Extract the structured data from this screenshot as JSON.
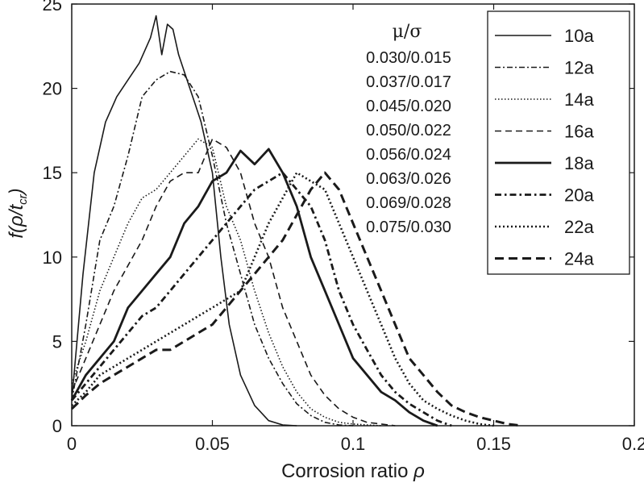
{
  "chart_data": {
    "type": "line",
    "xlabel": "Corrosion ratio",
    "xlabel_symbol": "ρ",
    "ylabel": "f(ρ/t",
    "ylabel_sub": "cr",
    "ylabel_close": ")",
    "xlim": [
      0,
      0.2
    ],
    "ylim": [
      0,
      25
    ],
    "x_ticks": [
      "0",
      "0.05",
      "0.1",
      "0.15",
      "0.2"
    ],
    "x_tick_values": [
      0,
      0.05,
      0.1,
      0.15,
      0.2
    ],
    "y_ticks": [
      "0",
      "5",
      "10",
      "15",
      "20",
      "25"
    ],
    "y_tick_values": [
      0,
      5,
      10,
      15,
      20,
      25
    ],
    "grid": false,
    "legend_position": "top-right",
    "annotation_title": "μ/σ",
    "annotation_lines": [
      "0.030/0.015",
      "0.037/0.017",
      "0.045/0.020",
      "0.050/0.022",
      "0.056/0.024",
      "0.063/0.026",
      "0.069/0.028",
      "0.075/0.030"
    ],
    "series": [
      {
        "name": "10a",
        "style": "solid-thin",
        "x": [
          0,
          0.004,
          0.008,
          0.012,
          0.016,
          0.02,
          0.024,
          0.028,
          0.03,
          0.032,
          0.034,
          0.036,
          0.038,
          0.04,
          0.042,
          0.044,
          0.046,
          0.048,
          0.05,
          0.053,
          0.056,
          0.06,
          0.065,
          0.07,
          0.075,
          0.08
        ],
        "y": [
          1.5,
          9,
          15,
          18,
          19.5,
          20.5,
          21.5,
          23,
          24.3,
          22,
          23.8,
          23.5,
          22,
          21,
          20,
          19,
          18,
          16.5,
          15,
          10,
          6,
          3,
          1.2,
          0.3,
          0.05,
          0
        ]
      },
      {
        "name": "12a",
        "style": "dash-dot-thin",
        "x": [
          0,
          0.005,
          0.01,
          0.015,
          0.02,
          0.025,
          0.03,
          0.035,
          0.04,
          0.045,
          0.05,
          0.055,
          0.06,
          0.065,
          0.07,
          0.075,
          0.08,
          0.085,
          0.09,
          0.095,
          0.1
        ],
        "y": [
          1.5,
          6,
          11,
          13,
          16,
          19.5,
          20.5,
          21,
          20.8,
          19.5,
          16,
          12,
          9,
          6,
          4,
          2.5,
          1.3,
          0.6,
          0.2,
          0.05,
          0
        ]
      },
      {
        "name": "14a",
        "style": "dotted-thin",
        "x": [
          0,
          0.005,
          0.01,
          0.015,
          0.02,
          0.025,
          0.03,
          0.035,
          0.04,
          0.045,
          0.05,
          0.055,
          0.06,
          0.065,
          0.07,
          0.075,
          0.08,
          0.085,
          0.09,
          0.095,
          0.1,
          0.105,
          0.11
        ],
        "y": [
          2.5,
          5,
          8,
          10,
          12,
          13.5,
          14,
          15,
          16,
          17,
          16.5,
          13,
          11,
          8,
          5.5,
          3.5,
          2,
          1,
          0.5,
          0.2,
          0.1,
          0.05,
          0
        ]
      },
      {
        "name": "16a",
        "style": "dashed-thin",
        "x": [
          0,
          0.005,
          0.01,
          0.015,
          0.02,
          0.025,
          0.03,
          0.035,
          0.04,
          0.045,
          0.05,
          0.055,
          0.06,
          0.065,
          0.07,
          0.075,
          0.08,
          0.085,
          0.09,
          0.095,
          0.1,
          0.105,
          0.11,
          0.115
        ],
        "y": [
          2,
          4,
          6,
          8,
          9.5,
          11,
          13,
          14.5,
          15,
          15,
          17,
          16.5,
          15,
          12,
          10,
          7,
          5,
          3,
          1.8,
          1,
          0.5,
          0.2,
          0.1,
          0
        ]
      },
      {
        "name": "18a",
        "style": "solid-thick",
        "x": [
          0,
          0.005,
          0.01,
          0.015,
          0.02,
          0.025,
          0.03,
          0.035,
          0.04,
          0.045,
          0.05,
          0.055,
          0.06,
          0.065,
          0.07,
          0.075,
          0.08,
          0.085,
          0.09,
          0.095,
          0.1,
          0.105,
          0.11,
          0.115,
          0.12,
          0.125,
          0.13
        ],
        "y": [
          1.5,
          3,
          4,
          5,
          7,
          8,
          9,
          10,
          12,
          13,
          14.5,
          15,
          16.3,
          15.5,
          16.4,
          15,
          13,
          10,
          8,
          6,
          4,
          3,
          2,
          1.5,
          0.8,
          0.3,
          0
        ]
      },
      {
        "name": "20a",
        "style": "dash-dot-thick",
        "x": [
          0,
          0.005,
          0.01,
          0.015,
          0.02,
          0.025,
          0.03,
          0.035,
          0.04,
          0.045,
          0.05,
          0.055,
          0.06,
          0.065,
          0.07,
          0.075,
          0.08,
          0.085,
          0.09,
          0.095,
          0.1,
          0.105,
          0.11,
          0.115,
          0.12,
          0.125,
          0.13,
          0.135
        ],
        "y": [
          1.5,
          2.5,
          3.5,
          4.5,
          5.5,
          6.5,
          7,
          8,
          9,
          10,
          11,
          12,
          13,
          14,
          14.5,
          15,
          14,
          13,
          11,
          8,
          6,
          4.5,
          3,
          2,
          1.3,
          0.8,
          0.3,
          0
        ]
      },
      {
        "name": "22a",
        "style": "dotted-thick",
        "x": [
          0,
          0.005,
          0.01,
          0.015,
          0.02,
          0.025,
          0.03,
          0.035,
          0.04,
          0.045,
          0.05,
          0.055,
          0.06,
          0.065,
          0.07,
          0.075,
          0.08,
          0.085,
          0.09,
          0.095,
          0.1,
          0.105,
          0.11,
          0.115,
          0.12,
          0.125,
          0.13,
          0.135,
          0.14,
          0.145,
          0.15
        ],
        "y": [
          1.2,
          2,
          3,
          3.5,
          4,
          4.5,
          5,
          5.5,
          6,
          6.5,
          7,
          7.5,
          8,
          10,
          12,
          13.5,
          15,
          14.5,
          14,
          12,
          10,
          8,
          6,
          4,
          2.5,
          1.5,
          1,
          0.6,
          0.3,
          0.1,
          0
        ]
      },
      {
        "name": "24a",
        "style": "dashed-thick",
        "x": [
          0,
          0.005,
          0.01,
          0.015,
          0.02,
          0.025,
          0.03,
          0.035,
          0.04,
          0.045,
          0.05,
          0.055,
          0.06,
          0.065,
          0.07,
          0.075,
          0.08,
          0.085,
          0.09,
          0.095,
          0.1,
          0.105,
          0.11,
          0.115,
          0.12,
          0.125,
          0.13,
          0.135,
          0.14,
          0.145,
          0.15,
          0.155,
          0.16
        ],
        "y": [
          1,
          1.8,
          2.5,
          3,
          3.5,
          4,
          4.5,
          4.5,
          5,
          5.5,
          6,
          7,
          8,
          9,
          10,
          11,
          12.5,
          14,
          15,
          14,
          12,
          10,
          8,
          6,
          4,
          3,
          2,
          1.2,
          0.8,
          0.5,
          0.3,
          0.1,
          0
        ]
      }
    ]
  }
}
